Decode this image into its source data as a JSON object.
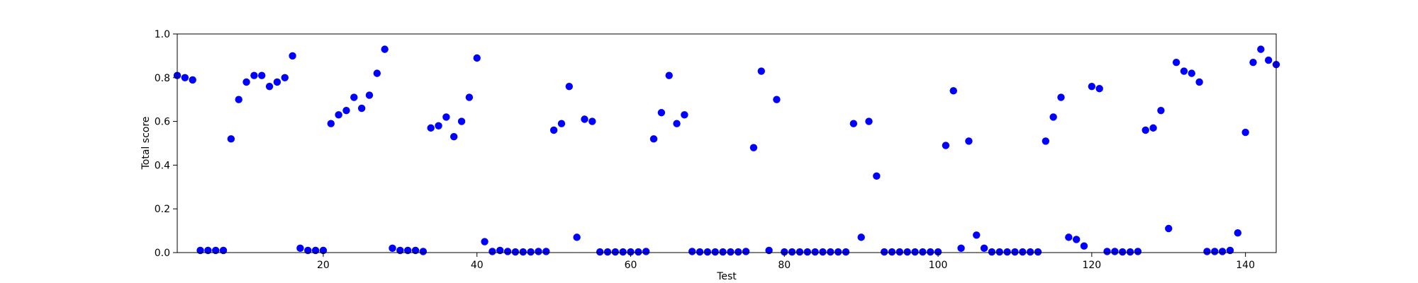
{
  "chart_data": {
    "type": "scatter",
    "title": "",
    "xlabel": "Test",
    "ylabel": "Total score",
    "xlim": [
      1,
      144
    ],
    "ylim": [
      0.0,
      1.0
    ],
    "xticks": [
      20,
      40,
      60,
      80,
      100,
      120,
      140
    ],
    "xtick_labels": [
      "20",
      "40",
      "60",
      "80",
      "100",
      "120",
      "140"
    ],
    "yticks": [
      0.0,
      0.2,
      0.4,
      0.6,
      0.8,
      1.0
    ],
    "ytick_labels": [
      "0.0",
      "0.2",
      "0.4",
      "0.6",
      "0.8",
      "1.0"
    ],
    "grid": false,
    "marker_color": "#0000ff",
    "x": [
      1,
      2,
      3,
      4,
      5,
      6,
      7,
      8,
      9,
      10,
      11,
      12,
      13,
      14,
      15,
      16,
      17,
      18,
      19,
      20,
      21,
      22,
      23,
      24,
      25,
      26,
      27,
      28,
      29,
      30,
      31,
      32,
      33,
      34,
      35,
      36,
      37,
      38,
      39,
      40,
      41,
      42,
      43,
      44,
      45,
      46,
      47,
      48,
      49,
      50,
      51,
      52,
      53,
      54,
      55,
      56,
      57,
      58,
      59,
      60,
      61,
      62,
      63,
      64,
      65,
      66,
      67,
      68,
      69,
      70,
      71,
      72,
      73,
      74,
      75,
      76,
      77,
      78,
      79,
      80,
      81,
      82,
      83,
      84,
      85,
      86,
      87,
      88,
      89,
      90,
      91,
      92,
      93,
      94,
      95,
      96,
      97,
      98,
      99,
      100,
      101,
      102,
      103,
      104,
      105,
      106,
      107,
      108,
      109,
      110,
      111,
      112,
      113,
      114,
      115,
      116,
      117,
      118,
      119,
      120,
      121,
      122,
      123,
      124,
      125,
      126,
      127,
      128,
      129,
      130,
      131,
      132,
      133,
      134,
      135,
      136,
      137,
      138,
      139,
      140,
      141,
      142,
      143,
      144
    ],
    "y": [
      0.81,
      0.8,
      0.79,
      0.01,
      0.01,
      0.01,
      0.01,
      0.52,
      0.7,
      0.78,
      0.81,
      0.81,
      0.76,
      0.78,
      0.8,
      0.9,
      0.02,
      0.01,
      0.01,
      0.01,
      0.59,
      0.63,
      0.65,
      0.71,
      0.66,
      0.72,
      0.82,
      0.93,
      0.02,
      0.01,
      0.01,
      0.01,
      0.005,
      0.57,
      0.58,
      0.62,
      0.53,
      0.6,
      0.71,
      0.89,
      0.05,
      0.005,
      0.01,
      0.005,
      0.003,
      0.003,
      0.003,
      0.005,
      0.005,
      0.56,
      0.59,
      0.76,
      0.07,
      0.61,
      0.6,
      0.003,
      0.003,
      0.003,
      0.003,
      0.003,
      0.003,
      0.005,
      0.52,
      0.64,
      0.81,
      0.59,
      0.63,
      0.005,
      0.003,
      0.003,
      0.003,
      0.003,
      0.003,
      0.003,
      0.005,
      0.48,
      0.83,
      0.01,
      0.7,
      0.003,
      0.003,
      0.003,
      0.003,
      0.003,
      0.003,
      0.003,
      0.003,
      0.003,
      0.59,
      0.07,
      0.6,
      0.35,
      0.003,
      0.003,
      0.003,
      0.003,
      0.003,
      0.003,
      0.003,
      0.003,
      0.49,
      0.74,
      0.02,
      0.51,
      0.08,
      0.02,
      0.003,
      0.003,
      0.003,
      0.003,
      0.003,
      0.003,
      0.003,
      0.51,
      0.62,
      0.71,
      0.07,
      0.06,
      0.03,
      0.76,
      0.75,
      0.005,
      0.005,
      0.003,
      0.003,
      0.005,
      0.56,
      0.57,
      0.65,
      0.11,
      0.87,
      0.83,
      0.82,
      0.78,
      0.005,
      0.005,
      0.005,
      0.01,
      0.09,
      0.55,
      0.87,
      0.93,
      0.88,
      0.86
    ]
  }
}
